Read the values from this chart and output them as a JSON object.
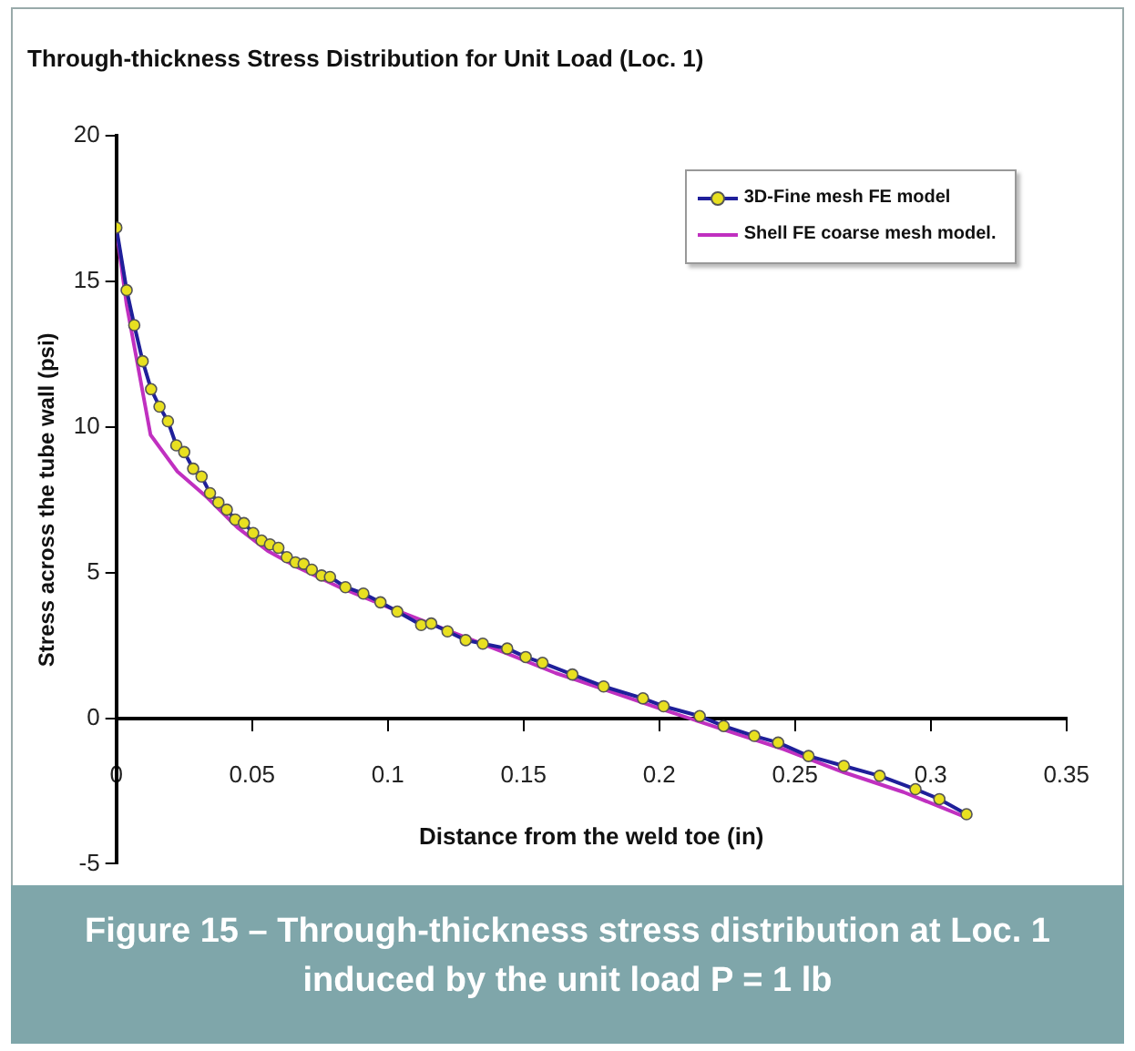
{
  "chart_data": {
    "type": "line",
    "title": "Through-thickness Stress Distribution for Unit Load (Loc. 1)",
    "xlabel": "Distance from the weld toe (in)",
    "ylabel": "Stress across the tube wall (psi)",
    "xlim": [
      0,
      0.35
    ],
    "xticks": [
      0,
      0.05,
      0.1,
      0.15,
      0.2,
      0.25,
      0.3,
      0.35
    ],
    "ylim": [
      -5,
      20
    ],
    "yticks": [
      -5,
      0,
      5,
      10,
      15,
      20
    ],
    "grid": false,
    "legend": "top right",
    "series": [
      {
        "name": "3D-Fine mesh FE model",
        "color": "#1f1f9a",
        "marker": "circle",
        "x": [
          0,
          0.0038,
          0.0066,
          0.0097,
          0.0128,
          0.0159,
          0.019,
          0.0221,
          0.025,
          0.0283,
          0.0314,
          0.0345,
          0.0376,
          0.0407,
          0.0438,
          0.047,
          0.0504,
          0.0535,
          0.0566,
          0.0597,
          0.0628,
          0.066,
          0.069,
          0.072,
          0.0756,
          0.0787,
          0.0844,
          0.091,
          0.0973,
          0.1035,
          0.1123,
          0.116,
          0.122,
          0.1287,
          0.135,
          0.144,
          0.1508,
          0.157,
          0.168,
          0.1795,
          0.194,
          0.2016,
          0.2149,
          0.2237,
          0.235,
          0.2438,
          0.255,
          0.268,
          0.2812,
          0.2944,
          0.3032,
          0.3132
        ],
        "values": [
          16.85,
          14.7,
          13.5,
          12.26,
          11.3,
          10.7,
          10.2,
          9.37,
          9.14,
          8.57,
          8.3,
          7.73,
          7.41,
          7.16,
          6.82,
          6.7,
          6.36,
          6.1,
          5.97,
          5.85,
          5.53,
          5.35,
          5.3,
          5.1,
          4.9,
          4.85,
          4.5,
          4.28,
          3.98,
          3.66,
          3.2,
          3.25,
          2.98,
          2.68,
          2.56,
          2.39,
          2.1,
          1.9,
          1.5,
          1.09,
          0.68,
          0.41,
          0.07,
          -0.27,
          -0.61,
          -0.84,
          -1.3,
          -1.64,
          -1.98,
          -2.44,
          -2.78,
          -3.3
        ]
      },
      {
        "name": "Shell FE coarse mesh model.",
        "color": "#c030c0",
        "marker": "none",
        "x": [
          0,
          0.0038,
          0.0126,
          0.0225,
          0.0336,
          0.0446,
          0.0557,
          0.0668,
          0.0822,
          0.0999,
          0.122,
          0.144,
          0.1618,
          0.168,
          0.2016,
          0.2237,
          0.246,
          0.268,
          0.29,
          0.3132
        ],
        "values": [
          16.8,
          14.2,
          9.73,
          8.47,
          7.57,
          6.55,
          5.75,
          5.18,
          4.5,
          3.82,
          3.02,
          2.22,
          1.55,
          1.36,
          0.29,
          -0.39,
          -1.07,
          -1.86,
          -2.54,
          -3.41
        ]
      }
    ],
    "annotations": [
      "Figure 15 – Through-thickness stress distribution at Loc. 1 induced by the unit load P = 1 lb"
    ]
  }
}
